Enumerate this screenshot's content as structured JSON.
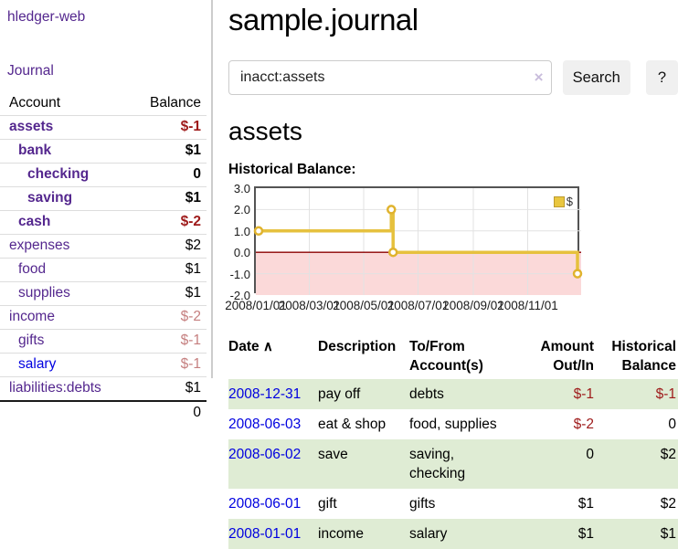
{
  "colors": {
    "accent_purple": "#54278e",
    "link_blue": "#0000e0",
    "negative_red": "#9e1a1a",
    "soft_negative": "#c57f7f",
    "row_stripe_green": "#dfecd4",
    "chart_line_gold": "#e6c13e",
    "chart_negative_fill": "#fbd9d9",
    "chart_zero_line": "#8b0000"
  },
  "sidebar": {
    "brand": "hledger-web",
    "journal_label": "Journal",
    "headers": {
      "account": "Account",
      "balance": "Balance"
    },
    "accounts": [
      {
        "name": "assets",
        "indent": 0,
        "bold": true,
        "balance": "$-1",
        "neg": true
      },
      {
        "name": "bank",
        "indent": 1,
        "bold": true,
        "balance": "$1"
      },
      {
        "name": "checking",
        "indent": 2,
        "bold": true,
        "balance": "0"
      },
      {
        "name": "saving",
        "indent": 2,
        "bold": true,
        "balance": "$1"
      },
      {
        "name": "cash",
        "indent": 1,
        "bold": true,
        "balance": "$-2",
        "neg": true
      },
      {
        "name": "expenses",
        "indent": 0,
        "bold": false,
        "balance": "$2"
      },
      {
        "name": "food",
        "indent": 1,
        "bold": false,
        "balance": "$1"
      },
      {
        "name": "supplies",
        "indent": 1,
        "bold": false,
        "balance": "$1"
      },
      {
        "name": "income",
        "indent": 0,
        "bold": false,
        "balance": "$-2",
        "soft": true
      },
      {
        "name": "gifts",
        "indent": 1,
        "bold": false,
        "balance": "$-1",
        "soft": true
      },
      {
        "name": "salary",
        "indent": 1,
        "bold": false,
        "balance": "$-1",
        "soft": true,
        "blue": true
      },
      {
        "name": "liabilities:debts",
        "indent": 0,
        "bold": false,
        "balance": "$1"
      }
    ],
    "total": "0"
  },
  "main": {
    "title": "sample.journal",
    "search": {
      "value": "inacct:assets",
      "clear_icon": "×",
      "button_label": "Search",
      "help_label": "?"
    },
    "account_heading": "assets",
    "chart_label": "Historical Balance:"
  },
  "chart_data": {
    "type": "line",
    "step": true,
    "title": "Historical Balance",
    "legend": "$",
    "legend_position": "top-right",
    "grid": true,
    "x_start": "2008/01/01",
    "x_end": "2008/12/31",
    "x_ticks": [
      "2008/01/01",
      "2008/03/01",
      "2008/05/01",
      "2008/07/01",
      "2008/09/01",
      "2008/11/01"
    ],
    "y_ticks": [
      "3.0",
      "2.0",
      "1.0",
      "0.0",
      "-1.0",
      "-2.0"
    ],
    "ylim": [
      -2,
      3
    ],
    "series": [
      {
        "name": "$",
        "points": [
          {
            "date": "2008/01/01",
            "value": 1
          },
          {
            "date": "2008/06/01",
            "value": 2
          },
          {
            "date": "2008/06/03",
            "value": 0
          },
          {
            "date": "2008/12/31",
            "value": -1
          }
        ]
      }
    ]
  },
  "register": {
    "headers": {
      "date": "Date",
      "sort_icon": "∧",
      "description": "Description",
      "accounts": "To/From Account(s)",
      "amount": "Amount Out/In",
      "balance": "Historical Balance"
    },
    "rows": [
      {
        "date": "2008-12-31",
        "description": "pay off",
        "accounts": "debts",
        "amount": "$-1",
        "amount_neg": true,
        "balance": "$-1",
        "balance_neg": true
      },
      {
        "date": "2008-06-03",
        "description": "eat & shop",
        "accounts": "food, supplies",
        "amount": "$-2",
        "amount_neg": true,
        "balance": "0"
      },
      {
        "date": "2008-06-02",
        "description": "save",
        "accounts": "saving, checking",
        "amount": "0",
        "balance": "$2"
      },
      {
        "date": "2008-06-01",
        "description": "gift",
        "accounts": "gifts",
        "amount": "$1",
        "balance": "$2"
      },
      {
        "date": "2008-01-01",
        "description": "income",
        "accounts": "salary",
        "amount": "$1",
        "balance": "$1"
      }
    ]
  }
}
